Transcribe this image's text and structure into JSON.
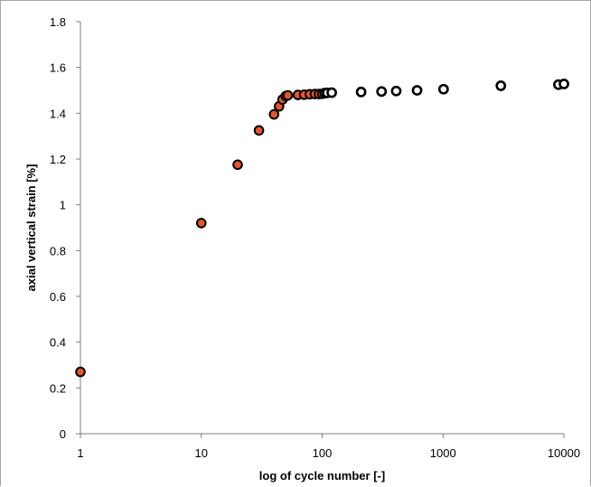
{
  "chart_data": {
    "type": "scatter",
    "title": "",
    "xlabel": "log of cycle number [-]",
    "ylabel": "axial vertical strain [%]",
    "x_scale": "log",
    "xlim": [
      1,
      10000
    ],
    "ylim": [
      0,
      1.8
    ],
    "x_ticks": [
      1,
      10,
      100,
      1000,
      10000
    ],
    "x_tick_labels": [
      "1",
      "10",
      "100",
      "1000",
      "10000"
    ],
    "y_ticks": [
      0,
      0.2,
      0.4,
      0.6,
      0.8,
      1,
      1.2,
      1.4,
      1.6,
      1.8
    ],
    "y_tick_labels": [
      "0",
      "0.2",
      "0.4",
      "0.6",
      "0.8",
      "1",
      "1.2",
      "1.4",
      "1.6",
      "1.8"
    ],
    "grid": false,
    "legend": "none",
    "series": [
      {
        "marker": "filled circle",
        "color": "#E8552B",
        "edge_color": "#000000",
        "points": [
          {
            "x": 1,
            "y": 0.27
          },
          {
            "x": 10,
            "y": 0.92
          },
          {
            "x": 20,
            "y": 1.175
          },
          {
            "x": 30,
            "y": 1.325
          },
          {
            "x": 40,
            "y": 1.395
          },
          {
            "x": 44,
            "y": 1.43
          },
          {
            "x": 47,
            "y": 1.46
          },
          {
            "x": 50,
            "y": 1.475
          },
          {
            "x": 52,
            "y": 1.478
          },
          {
            "x": 63,
            "y": 1.48
          },
          {
            "x": 71,
            "y": 1.481
          },
          {
            "x": 79,
            "y": 1.483
          },
          {
            "x": 87,
            "y": 1.484
          },
          {
            "x": 94,
            "y": 1.484
          },
          {
            "x": 100,
            "y": 1.485
          }
        ]
      },
      {
        "marker": "open circle",
        "color": "#FFFFFF",
        "edge_color": "#000000",
        "points": [
          {
            "x": 105,
            "y": 1.488
          },
          {
            "x": 110,
            "y": 1.489
          },
          {
            "x": 120,
            "y": 1.49
          },
          {
            "x": 210,
            "y": 1.493
          },
          {
            "x": 310,
            "y": 1.495
          },
          {
            "x": 410,
            "y": 1.497
          },
          {
            "x": 610,
            "y": 1.5
          },
          {
            "x": 1010,
            "y": 1.505
          },
          {
            "x": 3010,
            "y": 1.52
          },
          {
            "x": 9010,
            "y": 1.525
          },
          {
            "x": 10010,
            "y": 1.528
          }
        ]
      }
    ]
  }
}
